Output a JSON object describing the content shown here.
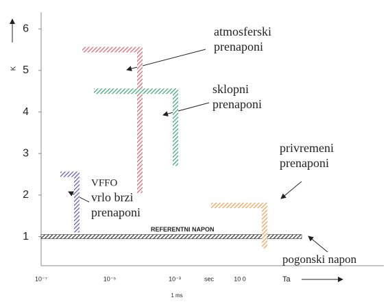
{
  "chart_data": {
    "type": "levels",
    "y_label": "K",
    "ylim": [
      0.3,
      6.3
    ],
    "yticks": [
      1,
      2,
      3,
      4,
      5,
      6
    ],
    "x_tick_labels": [
      "10⁻⁷",
      "10⁻⁵",
      "10⁻³",
      "sec",
      "10 0"
    ],
    "x_label": "Ta",
    "x_note": "1 ms",
    "reference": {
      "name": "REFERENTNI NAPON",
      "value": 1
    },
    "series": [
      {
        "name": [
          "atmosferski",
          "prenaponi"
        ],
        "color": "#e0606e",
        "top": 5.5,
        "bottom": 2.05
      },
      {
        "name": [
          "sklopni",
          "prenaponi"
        ],
        "color": "#3aa870",
        "top": 4.5,
        "bottom": 2.7
      },
      {
        "name": [
          "VFFO",
          "vrlo brzi",
          "prenaponi"
        ],
        "color": "#5a5ab8",
        "top": 2.5,
        "bottom": 1.1
      },
      {
        "name": [
          "privremeni",
          "prenaponi"
        ],
        "color": "#f0a050",
        "top": 1.75,
        "bottom": 0.72
      }
    ],
    "base_label": "pogonski napon"
  }
}
